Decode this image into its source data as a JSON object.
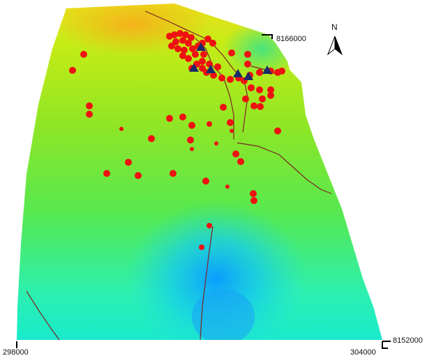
{
  "map": {
    "north_label": "N",
    "x_min_label": "298000",
    "x_max_label": "304000",
    "y_min_label": "8152000",
    "y_max_label": "8166000",
    "x_range": [
      298000,
      304000
    ],
    "y_range": [
      8152000,
      8166000
    ],
    "elevation_colormap": [
      "#0aa6ff",
      "#11d9ee",
      "#2ef0a0",
      "#62e83c",
      "#a8ea1e",
      "#e8ea14",
      "#f6b41a"
    ]
  },
  "legend_symbols": {
    "sample_point": {
      "shape": "circle",
      "color": "#ee1111"
    },
    "station": {
      "shape": "triangle",
      "color": "#1a2a6a"
    },
    "stream": {
      "shape": "line",
      "color": "#7a2424"
    }
  }
}
